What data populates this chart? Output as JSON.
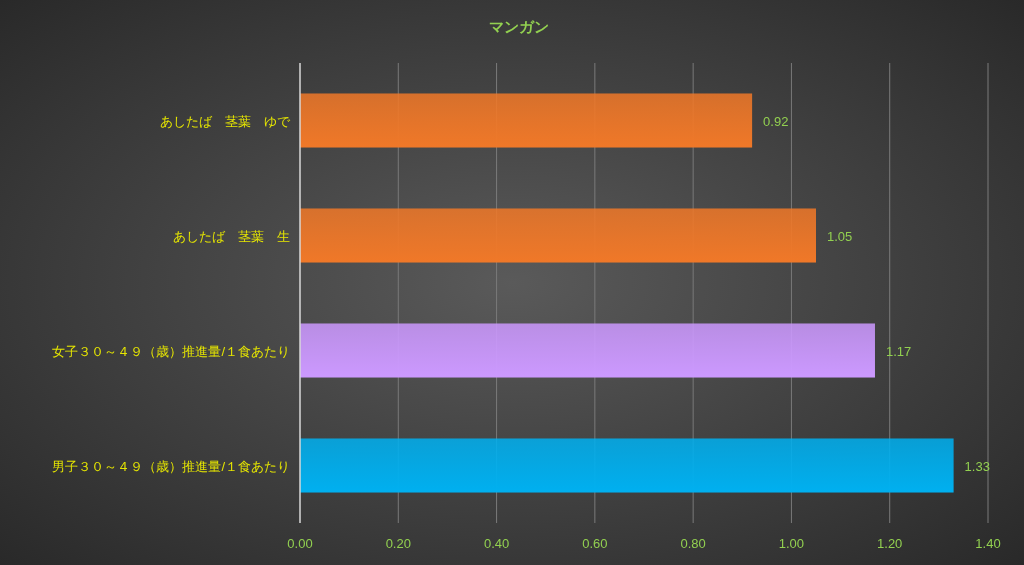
{
  "chart_data": {
    "type": "bar",
    "orientation": "horizontal",
    "title": "マンガン",
    "categories": [
      "あしたば　茎葉　ゆで",
      "あしたば　茎葉　生",
      "女子３０～４９（歳）推進量/１食あたり",
      "男子３０～４９（歳）推進量/１食あたり"
    ],
    "values": [
      0.92,
      1.05,
      1.17,
      1.33
    ],
    "colors": [
      "#f07828",
      "#f07828",
      "#cc99ff",
      "#00b0f0"
    ],
    "xlim": [
      0,
      1.4
    ],
    "xticks": [
      {
        "value": 0,
        "label": "0.00"
      },
      {
        "value": 0.2,
        "label": "0.20"
      },
      {
        "value": 0.4,
        "label": "0.40"
      },
      {
        "value": 0.6,
        "label": "0.60"
      },
      {
        "value": 0.8,
        "label": "0.80"
      },
      {
        "value": 1.0,
        "label": "1.00"
      },
      {
        "value": 1.2,
        "label": "1.20"
      },
      {
        "value": 1.4,
        "label": "1.40"
      }
    ],
    "grid": "x",
    "data_labels": true
  }
}
